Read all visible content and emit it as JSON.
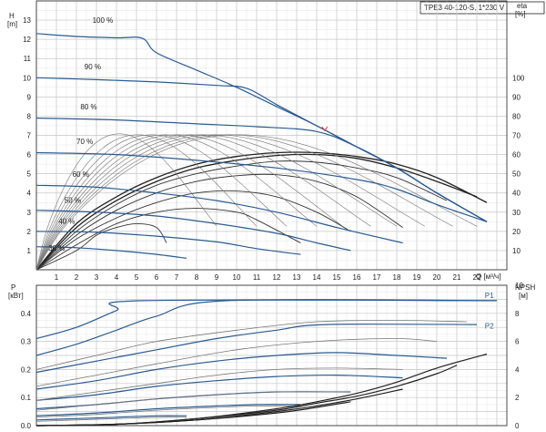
{
  "title": "TPE3 40-120-S, 1*230 V",
  "colors": {
    "grid": "#c8c8c8",
    "axis": "#222222",
    "pump_curve": "#2a5b92",
    "eff_curve": "#222222",
    "thin_curve": "#777777",
    "marker": "#e03030"
  },
  "chart_data": [
    {
      "type": "line",
      "name": "head-efficiency",
      "xlabel": "Q [м³/ч]",
      "ylabel_left": "H",
      "ylabel_left_unit": "[m]",
      "ylabel_right": "eta",
      "ylabel_right_unit": "[%]",
      "xlim": [
        0,
        23.5
      ],
      "ylim_left": [
        0,
        14
      ],
      "ylim_right": [
        0,
        140
      ],
      "x_ticks": [
        "1",
        "2",
        "3",
        "4",
        "5",
        "6",
        "7",
        "8",
        "9",
        "10",
        "11",
        "12",
        "13",
        "14",
        "15",
        "16",
        "17",
        "18",
        "19",
        "20",
        "21",
        "22"
      ],
      "y_left_ticks": [
        "1",
        "2",
        "3",
        "4",
        "5",
        "6",
        "7",
        "8",
        "9",
        "10",
        "11",
        "12",
        "13"
      ],
      "y_right_ticks": [
        "10",
        "20",
        "30",
        "40",
        "50",
        "60",
        "70",
        "80",
        "90",
        "100"
      ],
      "speed_labels": [
        "100 %",
        "90 %",
        "80 %",
        "70 %",
        "60 %",
        "50 %",
        "40 %",
        "30 %"
      ],
      "grid": true,
      "head_curves": [
        {
          "name": "100 %",
          "x": [
            0,
            2,
            4,
            5.3,
            6,
            8,
            10,
            12,
            14,
            16,
            18,
            20,
            22.5
          ],
          "y": [
            12.3,
            12.15,
            12.08,
            12.05,
            11.3,
            10.4,
            9.5,
            8.5,
            7.5,
            6.4,
            5.3,
            4.0,
            2.5
          ]
        },
        {
          "name": "90 %",
          "x": [
            0,
            3,
            6,
            9,
            10.5,
            12,
            14,
            16,
            18,
            20,
            22.5
          ],
          "y": [
            10.0,
            9.9,
            9.78,
            9.6,
            9.45,
            8.6,
            7.5,
            6.4,
            5.3,
            4.0,
            2.5
          ]
        },
        {
          "name": "80 %",
          "x": [
            0,
            4,
            8,
            11,
            14,
            16,
            18,
            20,
            22.5
          ],
          "y": [
            7.9,
            7.8,
            7.6,
            7.45,
            7.2,
            6.4,
            5.3,
            4.0,
            2.5
          ]
        },
        {
          "name": "70 %",
          "x": [
            0,
            4,
            8,
            12,
            16,
            18,
            20,
            22.5
          ],
          "y": [
            6.1,
            6.0,
            5.7,
            5.3,
            4.7,
            4.2,
            3.4,
            2.5
          ]
        },
        {
          "name": "60 %",
          "x": [
            0,
            3,
            6,
            9,
            12,
            15,
            18.3
          ],
          "y": [
            4.4,
            4.3,
            4.0,
            3.6,
            3.0,
            2.2,
            1.4
          ]
        },
        {
          "name": "50 %",
          "x": [
            0,
            3,
            6,
            9,
            12,
            14,
            15.7
          ],
          "y": [
            3.1,
            3.0,
            2.8,
            2.4,
            1.9,
            1.4,
            1.0
          ]
        },
        {
          "name": "40 %",
          "x": [
            0,
            3,
            6,
            9,
            11,
            13.2
          ],
          "y": [
            2.0,
            1.95,
            1.75,
            1.45,
            1.1,
            0.8
          ]
        },
        {
          "name": "30 %",
          "x": [
            0,
            2,
            4,
            6,
            7.5
          ],
          "y": [
            1.2,
            1.15,
            1.0,
            0.8,
            0.6
          ]
        }
      ],
      "efficiency_curves": [
        {
          "x": [
            0,
            2,
            4,
            6,
            8,
            10,
            12,
            14,
            16,
            18,
            20,
            22.5
          ],
          "y": [
            0,
            24,
            38,
            48,
            55,
            59,
            61,
            61,
            59,
            55,
            48,
            35
          ]
        },
        {
          "x": [
            0,
            2,
            4,
            6,
            8,
            10,
            12,
            14,
            16,
            18,
            20,
            22
          ],
          "y": [
            0,
            22,
            36,
            46,
            53,
            57,
            59.5,
            60,
            58,
            53,
            46,
            38
          ]
        },
        {
          "x": [
            0,
            2,
            4,
            6,
            8,
            10,
            12,
            14,
            16,
            18,
            20.5
          ],
          "y": [
            0,
            20,
            34,
            44,
            50,
            54,
            56.5,
            56,
            53,
            48,
            36
          ]
        },
        {
          "x": [
            0,
            2,
            4,
            6,
            8,
            10,
            12,
            14,
            16,
            18.3
          ],
          "y": [
            0,
            18,
            31,
            40,
            46,
            49,
            49.5,
            46,
            38,
            22
          ]
        },
        {
          "x": [
            0,
            2,
            4,
            6,
            8,
            10,
            12,
            14,
            15.7
          ],
          "y": [
            0,
            16,
            27,
            35,
            40,
            41,
            38,
            30,
            20
          ]
        },
        {
          "x": [
            0,
            2,
            4,
            6,
            8,
            10,
            11,
            13.2
          ],
          "y": [
            0,
            13,
            24,
            30,
            32,
            30,
            26,
            14
          ]
        },
        {
          "x": [
            0,
            2,
            3,
            4,
            5,
            6,
            6.5
          ],
          "y": [
            0,
            10,
            18,
            22,
            24,
            22,
            14
          ]
        }
      ],
      "marker": {
        "x": 14.4,
        "y": 7.3
      }
    },
    {
      "type": "line",
      "name": "power-npsh",
      "xlabel": "",
      "ylabel_left": "P",
      "ylabel_left_unit": "[кВт]",
      "ylabel_right": "NPSH",
      "ylabel_right_unit": "[м]",
      "xlim": [
        0,
        23.5
      ],
      "ylim_left": [
        0,
        0.5
      ],
      "ylim_right": [
        0,
        10
      ],
      "y_left_ticks": [
        "0.0",
        "0.1",
        "0.2",
        "0.3",
        "0.4"
      ],
      "y_right_ticks": [
        "0",
        "2",
        "4",
        "6",
        "8",
        "10"
      ],
      "series_labels": [
        "P1",
        "P2"
      ],
      "grid": true,
      "p1_curves": [
        {
          "x": [
            0,
            2,
            4,
            5.3,
            23
          ],
          "y": [
            0.31,
            0.35,
            0.41,
            0.445,
            0.445
          ]
        },
        {
          "x": [
            0,
            2,
            4,
            6,
            9.5,
            23
          ],
          "y": [
            0.25,
            0.29,
            0.34,
            0.39,
            0.445,
            0.445
          ]
        },
        {
          "x": [
            0,
            3,
            6,
            9,
            12,
            14.5,
            22
          ],
          "y": [
            0.19,
            0.23,
            0.27,
            0.31,
            0.34,
            0.36,
            0.36
          ]
        },
        {
          "x": [
            0,
            3,
            6,
            9,
            12,
            15,
            18,
            20.5
          ],
          "y": [
            0.13,
            0.16,
            0.2,
            0.23,
            0.25,
            0.26,
            0.25,
            0.24
          ]
        },
        {
          "x": [
            0,
            3,
            6,
            9,
            12,
            15,
            18.3
          ],
          "y": [
            0.09,
            0.11,
            0.14,
            0.16,
            0.175,
            0.18,
            0.17
          ]
        },
        {
          "x": [
            0,
            3,
            6,
            9,
            12,
            15.7
          ],
          "y": [
            0.06,
            0.075,
            0.095,
            0.11,
            0.12,
            0.12
          ]
        },
        {
          "x": [
            0,
            3,
            6,
            9,
            11,
            13.2
          ],
          "y": [
            0.035,
            0.045,
            0.06,
            0.07,
            0.075,
            0.075
          ]
        },
        {
          "x": [
            0,
            2,
            4,
            6,
            7.5
          ],
          "y": [
            0.02,
            0.025,
            0.03,
            0.035,
            0.035
          ]
        }
      ],
      "p2_curves": [
        {
          "x": [
            0,
            3,
            6,
            10,
            14,
            18,
            21.5
          ],
          "y": [
            0.2,
            0.25,
            0.3,
            0.34,
            0.37,
            0.375,
            0.37
          ]
        },
        {
          "x": [
            0,
            3,
            6,
            10,
            14,
            18,
            20
          ],
          "y": [
            0.14,
            0.18,
            0.22,
            0.27,
            0.3,
            0.31,
            0.3
          ]
        },
        {
          "x": [
            0,
            3,
            6,
            9,
            12,
            15,
            18.3
          ],
          "y": [
            0.09,
            0.12,
            0.15,
            0.18,
            0.2,
            0.205,
            0.2
          ]
        },
        {
          "x": [
            0,
            3,
            6,
            9,
            12,
            15.7
          ],
          "y": [
            0.055,
            0.075,
            0.095,
            0.11,
            0.12,
            0.12
          ]
        },
        {
          "x": [
            0,
            3,
            6,
            9,
            11,
            13.2
          ],
          "y": [
            0.03,
            0.04,
            0.055,
            0.065,
            0.07,
            0.07
          ]
        },
        {
          "x": [
            0,
            2,
            4,
            6,
            7.5
          ],
          "y": [
            0.015,
            0.02,
            0.025,
            0.03,
            0.03
          ]
        }
      ],
      "npsh_curves": [
        {
          "x": [
            0,
            4,
            8,
            12,
            14,
            16,
            18,
            20,
            22.5
          ],
          "y": [
            0,
            0.1,
            0.5,
            1.2,
            1.7,
            2.3,
            3.1,
            4.1,
            5.1
          ]
        },
        {
          "x": [
            0,
            4,
            8,
            12,
            14,
            16,
            18,
            20,
            21
          ],
          "y": [
            0,
            0.1,
            0.5,
            1.1,
            1.6,
            2.1,
            2.8,
            3.7,
            4.3
          ]
        },
        {
          "x": [
            0,
            4,
            8,
            12,
            14,
            16,
            18.3
          ],
          "y": [
            0,
            0.1,
            0.4,
            1.0,
            1.4,
            1.9,
            2.6
          ]
        },
        {
          "x": [
            0,
            4,
            8,
            12,
            14,
            15.7
          ],
          "y": [
            0,
            0.1,
            0.4,
            0.9,
            1.3,
            1.7
          ]
        }
      ]
    }
  ]
}
